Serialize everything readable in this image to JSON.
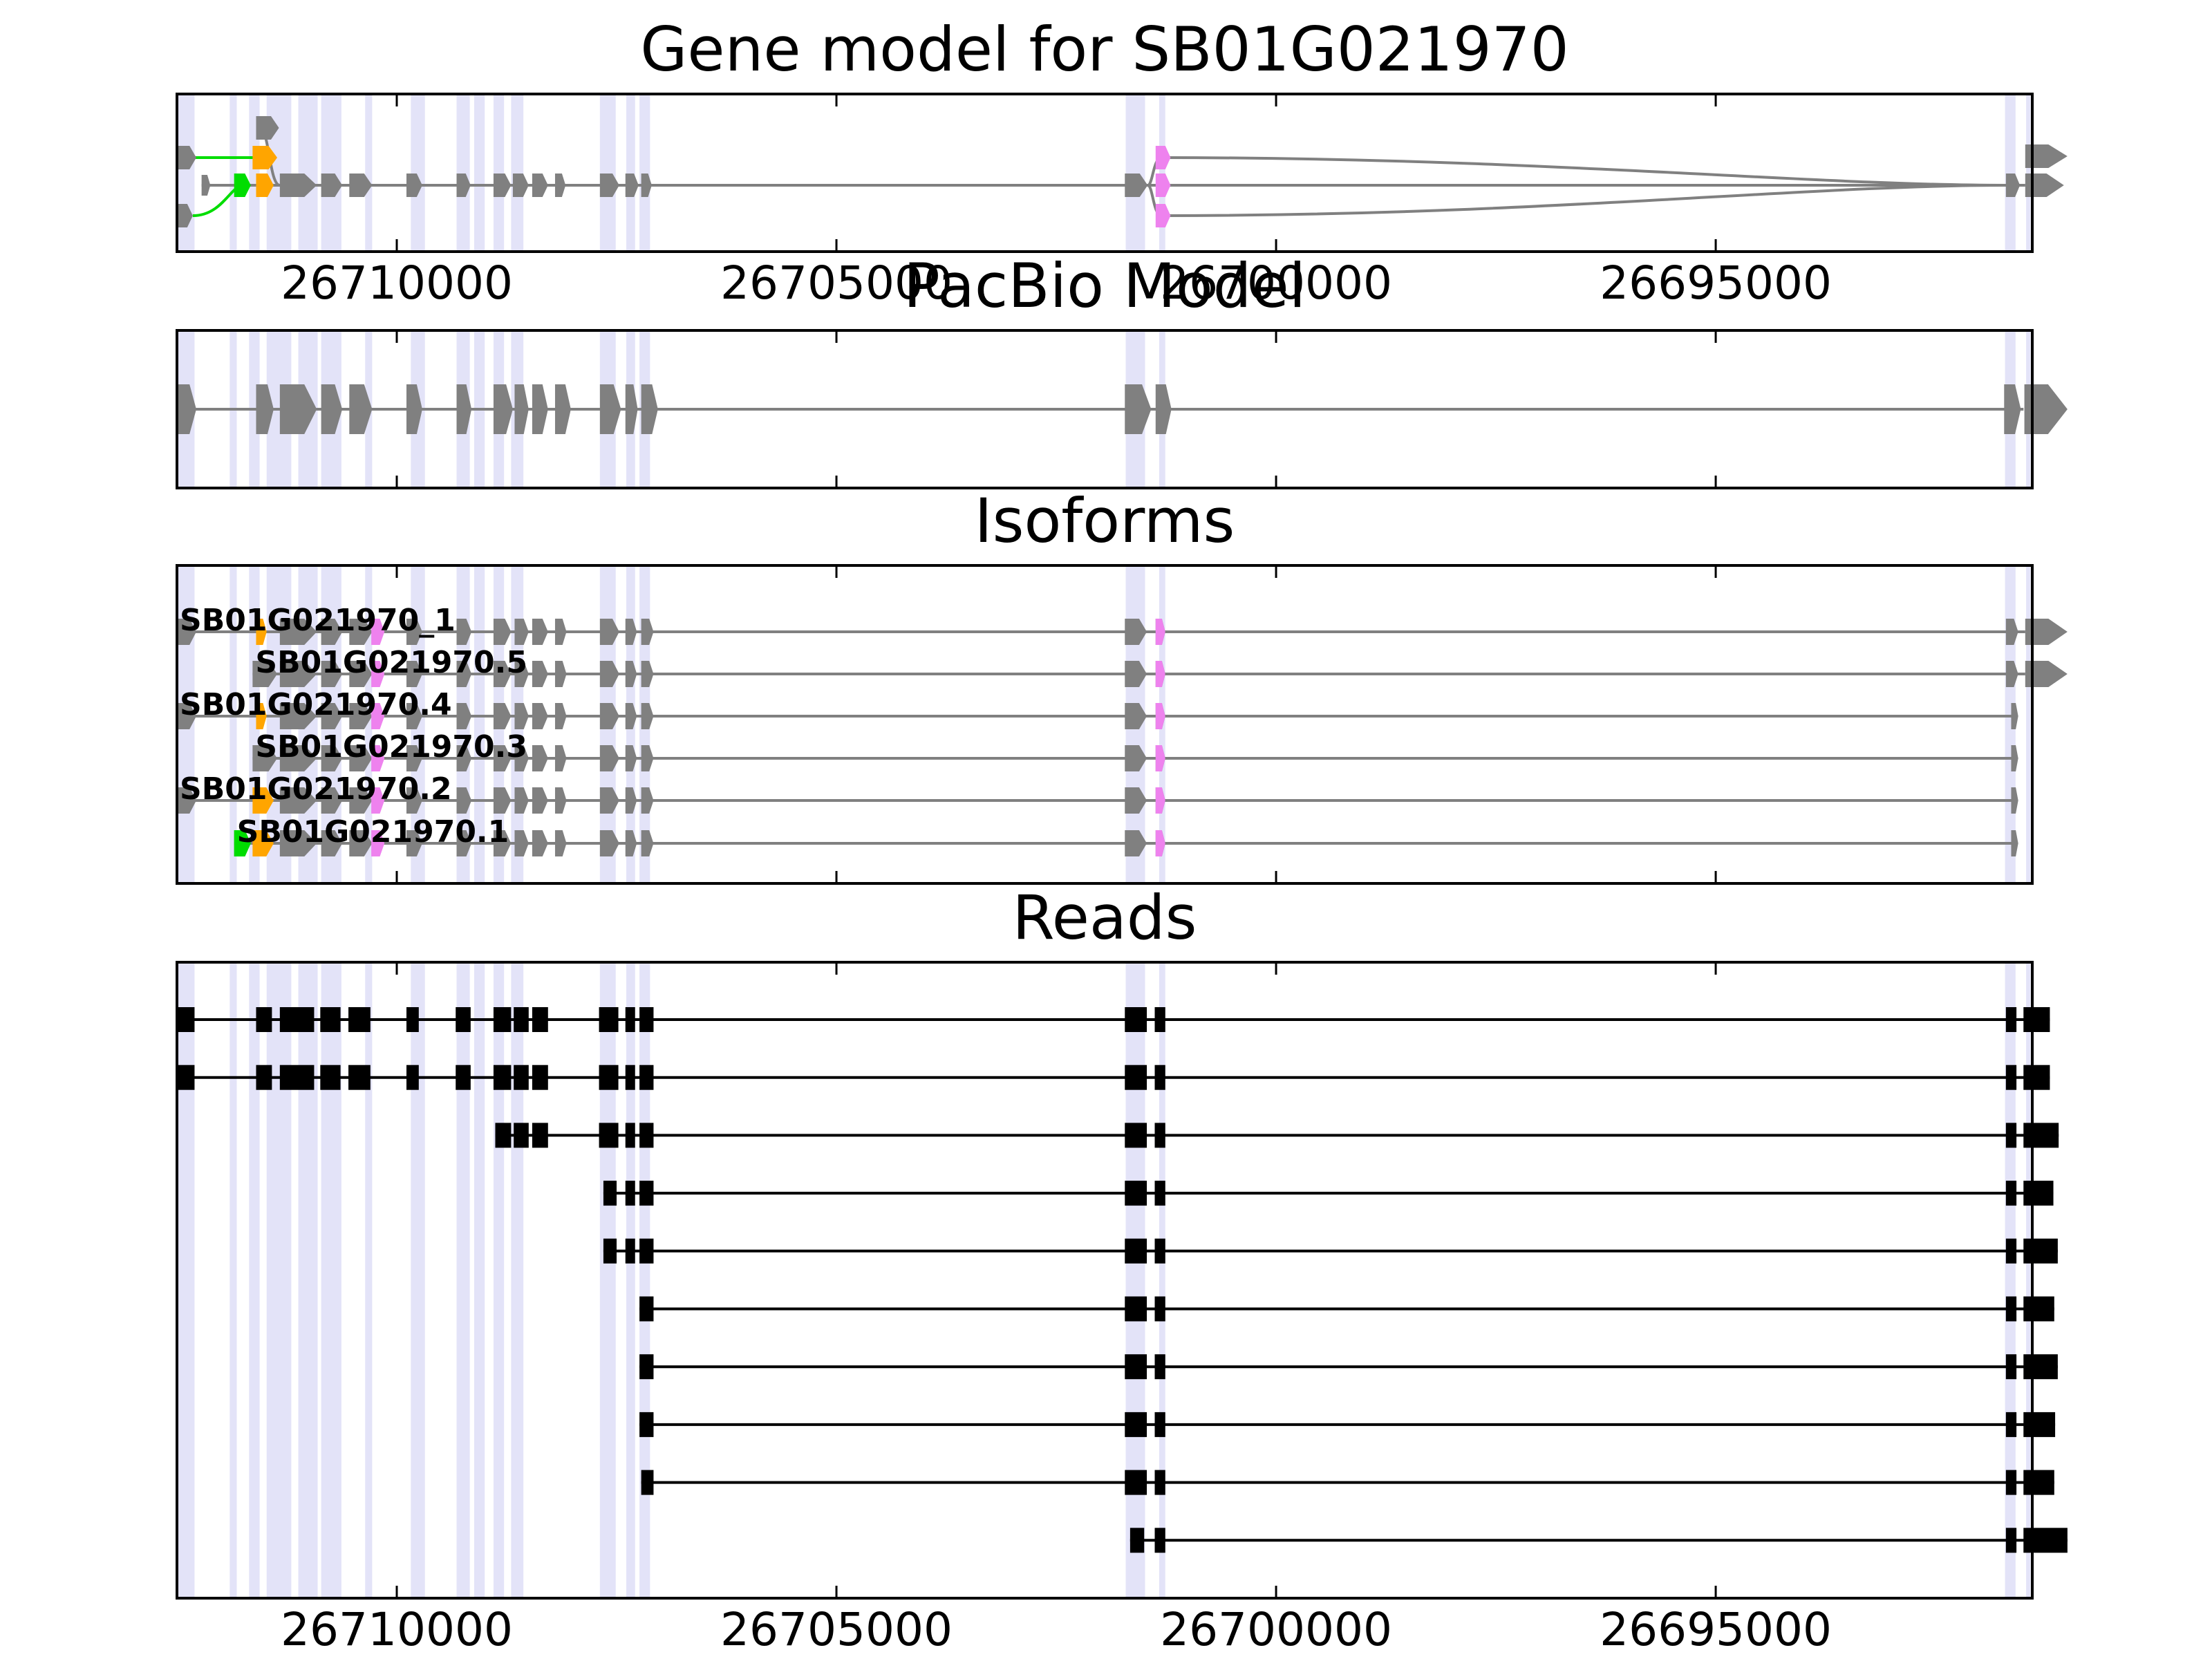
{
  "colors": {
    "exon": "#808080",
    "intron": "#808080",
    "read": "#000000",
    "shade": "#E3E3F8",
    "green": "#00DD00",
    "orange": "#FFA500",
    "violet": "#EE82EE"
  },
  "chart_data": [
    {
      "type": "gene-model",
      "title": "Gene model for SB01G021970",
      "xlim": [
        26712500,
        26691400
      ],
      "ticks": [
        "26710000",
        "26705000",
        "26700000",
        "26695000"
      ],
      "tick_values": [
        26710000,
        26705000,
        26700000,
        26695000
      ],
      "shaded_regions": [
        [
          26712500,
          26712300
        ],
        [
          26711900,
          26711820
        ],
        [
          26711680,
          26711560
        ],
        [
          26711480,
          26711200
        ],
        [
          26711120,
          26710900
        ],
        [
          26710860,
          26710630
        ],
        [
          26710360,
          26710280
        ],
        [
          26709840,
          26709680
        ],
        [
          26709320,
          26709170
        ],
        [
          26709120,
          26709000
        ],
        [
          26708900,
          26708780
        ],
        [
          26708700,
          26708560
        ],
        [
          26707690,
          26707510
        ],
        [
          26707390,
          26707290
        ],
        [
          26707240,
          26707120
        ],
        [
          26701710,
          26701490
        ],
        [
          26701330,
          26701260
        ],
        [
          26691710,
          26691590
        ],
        [
          26691470,
          26691420
        ]
      ],
      "introns": [
        [
          26712140,
          26711580,
          "green"
        ],
        [
          26712200,
          26711620,
          "green-curve"
        ],
        [
          26711510,
          26710810,
          "grey"
        ],
        [
          26707510,
          26701520,
          "grey"
        ],
        [
          26701460,
          26701140,
          "grey"
        ]
      ],
      "exons": [
        {
          "start": 26712500,
          "end": 26712280,
          "color": "grey"
        },
        {
          "start": 26712220,
          "end": 26712120,
          "color": "grey"
        },
        {
          "start": 26712500,
          "end": 26712320,
          "color": "grey"
        },
        {
          "start": 26711850,
          "end": 26711660,
          "color": "green"
        },
        {
          "start": 26711640,
          "end": 26711360,
          "color": "orange"
        },
        {
          "start": 26711600,
          "end": 26711400,
          "color": "orange"
        },
        {
          "start": 26711600,
          "end": 26711340,
          "color": "grey"
        },
        {
          "start": 26711330,
          "end": 26710910,
          "color": "grey"
        },
        {
          "start": 26710860,
          "end": 26710620,
          "color": "grey"
        },
        {
          "start": 26710540,
          "end": 26710280,
          "color": "grey"
        },
        {
          "start": 26709890,
          "end": 26709710,
          "color": "grey"
        },
        {
          "start": 26709320,
          "end": 26709160,
          "color": "grey"
        },
        {
          "start": 26708900,
          "end": 26708700,
          "color": "grey"
        },
        {
          "start": 26708680,
          "end": 26708500,
          "color": "grey"
        },
        {
          "start": 26708460,
          "end": 26708280,
          "color": "grey"
        },
        {
          "start": 26708200,
          "end": 26708080,
          "color": "grey"
        },
        {
          "start": 26707690,
          "end": 26707470,
          "color": "grey"
        },
        {
          "start": 26707400,
          "end": 26707250,
          "color": "grey"
        },
        {
          "start": 26707220,
          "end": 26707100,
          "color": "grey"
        },
        {
          "start": 26701720,
          "end": 26701460,
          "color": "grey"
        },
        {
          "start": 26701370,
          "end": 26701200,
          "color": "violet"
        },
        {
          "start": 26701370,
          "end": 26701200,
          "color": "violet"
        },
        {
          "start": 26701370,
          "end": 26701200,
          "color": "violet"
        },
        {
          "start": 26691700,
          "end": 26691540,
          "color": "grey"
        },
        {
          "start": 26691480,
          "end": 26691040,
          "color": "grey"
        },
        {
          "start": 26691480,
          "end": 26691000,
          "color": "grey"
        }
      ]
    },
    {
      "type": "gene-model",
      "title": "PacBio Model",
      "xlim": [
        26712500,
        26691400
      ],
      "ticks": [],
      "tick_values": [
        26710000,
        26705000,
        26700000,
        26695000
      ],
      "exons": [
        {
          "start": 26712500,
          "end": 26712280
        },
        {
          "start": 26711600,
          "end": 26711400
        },
        {
          "start": 26711330,
          "end": 26710910
        },
        {
          "start": 26710860,
          "end": 26710620
        },
        {
          "start": 26710540,
          "end": 26710280
        },
        {
          "start": 26709890,
          "end": 26709710
        },
        {
          "start": 26709320,
          "end": 26709150
        },
        {
          "start": 26708900,
          "end": 26708680
        },
        {
          "start": 26708660,
          "end": 26708500
        },
        {
          "start": 26708460,
          "end": 26708280
        },
        {
          "start": 26708200,
          "end": 26708020
        },
        {
          "start": 26707690,
          "end": 26707450
        },
        {
          "start": 26707400,
          "end": 26707260
        },
        {
          "start": 26707220,
          "end": 26707030
        },
        {
          "start": 26701720,
          "end": 26701420
        },
        {
          "start": 26701370,
          "end": 26701190
        },
        {
          "start": 26691720,
          "end": 26691530
        },
        {
          "start": 26691490,
          "end": 26691000
        }
      ]
    },
    {
      "type": "gene-model",
      "title": "Isoforms",
      "xlim": [
        26712500,
        26691400
      ],
      "ticks": [],
      "tick_values": [
        26710000,
        26705000,
        26700000,
        26695000
      ],
      "isoforms": [
        {
          "name": "SB01G021970_1",
          "label_start": 26712500,
          "start": 26712500,
          "end": 26691000,
          "first_exon": [
            26712500,
            26712280
          ],
          "last": "arrow",
          "colored": [
            [
              26711600,
              26711480,
              "orange"
            ],
            [
              26710290,
              26710140,
              "violet"
            ],
            [
              26701370,
              26701260,
              "violet"
            ]
          ]
        },
        {
          "name": "SB01G021970.5",
          "label_start": 26711640,
          "start": 26711640,
          "end": 26691000,
          "first_exon": [
            26711640,
            26711360
          ],
          "last": "arrow",
          "colored": [
            [
              26710290,
              26710140,
              "violet"
            ],
            [
              26701370,
              26701260,
              "violet"
            ]
          ]
        },
        {
          "name": "SB01G021970.4",
          "label_start": 26712500,
          "start": 26712500,
          "end": 26691580,
          "first_exon": [
            26712500,
            26712280
          ],
          "last": "small",
          "colored": [
            [
              26711600,
              26711480,
              "orange"
            ],
            [
              26710290,
              26710140,
              "violet"
            ],
            [
              26701370,
              26701260,
              "violet"
            ]
          ]
        },
        {
          "name": "SB01G021970.3",
          "label_start": 26711640,
          "start": 26711640,
          "end": 26691580,
          "first_exon": [
            26711640,
            26711360
          ],
          "last": "small",
          "colored": [
            [
              26710290,
              26710140,
              "violet"
            ],
            [
              26701370,
              26701260,
              "violet"
            ]
          ]
        },
        {
          "name": "SB01G021970.2",
          "label_start": 26712500,
          "start": 26712500,
          "end": 26691580,
          "first_exon": [
            26712500,
            26712280
          ],
          "last": "small",
          "colored": [
            [
              26711640,
              26711400,
              "orange"
            ],
            [
              26710290,
              26710140,
              "violet"
            ],
            [
              26701370,
              26701260,
              "violet"
            ]
          ]
        },
        {
          "name": "SB01G021970.1",
          "label_start": 26711850,
          "start": 26711850,
          "end": 26691580,
          "first_exon": [
            26711850,
            26711660
          ],
          "last": "small",
          "colored": [
            [
              26711850,
              26711660,
              "green"
            ],
            [
              26711640,
              26711400,
              "orange"
            ],
            [
              26710290,
              26710140,
              "violet"
            ],
            [
              26701370,
              26701260,
              "violet"
            ]
          ]
        }
      ],
      "internal_exons": [
        [
          26711330,
          26710910
        ],
        [
          26710860,
          26710620
        ],
        [
          26710540,
          26710280
        ],
        [
          26709890,
          26709710
        ],
        [
          26709320,
          26709150
        ],
        [
          26708900,
          26708700
        ],
        [
          26708660,
          26708500
        ],
        [
          26708460,
          26708280
        ],
        [
          26708200,
          26708070
        ],
        [
          26707690,
          26707470
        ],
        [
          26707400,
          26707270
        ],
        [
          26707220,
          26707080
        ],
        [
          26701720,
          26701470
        ],
        [
          26701370,
          26701260
        ]
      ]
    },
    {
      "type": "reads",
      "title": "Reads",
      "xlim": [
        26712500,
        26691400
      ],
      "ticks": [
        "26710000",
        "26705000",
        "26700000",
        "26695000"
      ],
      "tick_values": [
        26710000,
        26705000,
        26700000,
        26695000
      ],
      "reads": [
        [
          [
            26712500,
            26712300
          ],
          [
            26711600,
            26711420
          ],
          [
            26711330,
            26710940
          ],
          [
            26710870,
            26710640
          ],
          [
            26710550,
            26710300
          ],
          [
            26709890,
            26709750
          ],
          [
            26709330,
            26709160
          ],
          [
            26708900,
            26708700
          ],
          [
            26708670,
            26708500
          ],
          [
            26708460,
            26708280
          ],
          [
            26707700,
            26707480
          ],
          [
            26707400,
            26707290
          ],
          [
            26707240,
            26707080
          ],
          [
            26701720,
            26701470
          ],
          [
            26701380,
            26701260
          ],
          [
            26691700,
            26691580
          ],
          [
            26691500,
            26691200
          ]
        ],
        [
          [
            26712500,
            26712300
          ],
          [
            26711600,
            26711420
          ],
          [
            26711330,
            26710940
          ],
          [
            26710870,
            26710640
          ],
          [
            26710550,
            26710300
          ],
          [
            26709890,
            26709750
          ],
          [
            26709330,
            26709160
          ],
          [
            26708900,
            26708700
          ],
          [
            26708670,
            26708500
          ],
          [
            26708460,
            26708280
          ],
          [
            26707700,
            26707480
          ],
          [
            26707400,
            26707290
          ],
          [
            26707240,
            26707080
          ],
          [
            26701720,
            26701470
          ],
          [
            26701380,
            26701260
          ],
          [
            26691700,
            26691580
          ],
          [
            26691500,
            26691200
          ]
        ],
        [
          [
            26708880,
            26708700
          ],
          [
            26708670,
            26708500
          ],
          [
            26708460,
            26708280
          ],
          [
            26707700,
            26707480
          ],
          [
            26707400,
            26707290
          ],
          [
            26707240,
            26707080
          ],
          [
            26701720,
            26701470
          ],
          [
            26701380,
            26701260
          ],
          [
            26691700,
            26691580
          ],
          [
            26691500,
            26691100
          ]
        ],
        [
          [
            26707650,
            26707500
          ],
          [
            26707400,
            26707290
          ],
          [
            26707240,
            26707080
          ],
          [
            26701720,
            26701470
          ],
          [
            26701380,
            26701260
          ],
          [
            26691700,
            26691580
          ],
          [
            26691500,
            26691160
          ]
        ],
        [
          [
            26707650,
            26707500
          ],
          [
            26707400,
            26707290
          ],
          [
            26707240,
            26707080
          ],
          [
            26701720,
            26701470
          ],
          [
            26701380,
            26701260
          ],
          [
            26691700,
            26691580
          ],
          [
            26691500,
            26691110
          ]
        ],
        [
          [
            26707240,
            26707080
          ],
          [
            26701720,
            26701470
          ],
          [
            26701380,
            26701260
          ],
          [
            26691700,
            26691580
          ],
          [
            26691500,
            26691150
          ]
        ],
        [
          [
            26707240,
            26707080
          ],
          [
            26701720,
            26701470
          ],
          [
            26701380,
            26701260
          ],
          [
            26691700,
            26691580
          ],
          [
            26691500,
            26691110
          ]
        ],
        [
          [
            26707240,
            26707080
          ],
          [
            26701720,
            26701470
          ],
          [
            26701380,
            26701260
          ],
          [
            26691700,
            26691580
          ],
          [
            26691500,
            26691140
          ]
        ],
        [
          [
            26707220,
            26707080
          ],
          [
            26701720,
            26701470
          ],
          [
            26701380,
            26701260
          ],
          [
            26691700,
            26691580
          ],
          [
            26691500,
            26691150
          ]
        ],
        [
          [
            26701660,
            26701500
          ],
          [
            26701380,
            26701260
          ],
          [
            26691700,
            26691580
          ],
          [
            26691500,
            26691000
          ]
        ]
      ]
    }
  ]
}
